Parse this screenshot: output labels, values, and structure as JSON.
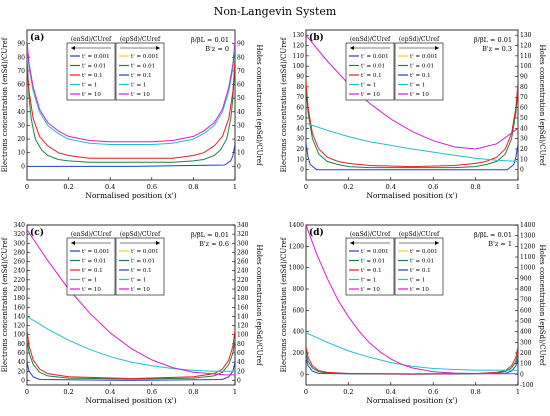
{
  "title": "Non-Langevin System",
  "legend_headers": {
    "electrons": "(enSd)/CUref",
    "holes": "(epSd)/CUref"
  },
  "legend_entries": [
    "t' = 0.001",
    "t' = 0.01",
    "t' = 0.1",
    "t' = 1",
    "t' = 10"
  ],
  "series_colors": [
    "#2040c0",
    "#208040",
    "#e02020",
    "#20c0d0",
    "#d020d0"
  ],
  "hole_series_colors": [
    "#f0d020",
    "#208040",
    "#2040c0",
    "#20c0d0",
    "#d020d0"
  ],
  "chart_data": [
    {
      "id": "a",
      "panel_label": "(a)",
      "type": "line",
      "params": [
        "β/βL = 0.01",
        "B'z = 0"
      ],
      "xlabel": "Normalised position (x')",
      "ylabel": "Electrons concentration (enSd)/CUref",
      "ylabel_right": "Holes concentration (epSd)/CUref",
      "xlim": [
        0,
        1
      ],
      "xticks": [
        0.2,
        0.4,
        0.6,
        0.8,
        1
      ],
      "ylim": [
        -10,
        100
      ],
      "yticks": [
        0,
        10,
        20,
        30,
        40,
        50,
        60,
        70,
        80,
        90
      ],
      "series": [
        {
          "name": "t' = 0.001",
          "x": [
            0,
            0.01,
            0.02,
            0.05,
            0.5,
            0.95,
            0.98,
            0.99,
            1
          ],
          "values": [
            0,
            0,
            0,
            0,
            0,
            1,
            4,
            8,
            16
          ]
        },
        {
          "name": "t' = 0.01",
          "x": [
            0,
            0.01,
            0.02,
            0.04,
            0.07,
            0.1,
            0.15,
            0.2,
            0.3,
            0.5,
            0.7,
            0.8,
            0.85,
            0.9,
            0.93,
            0.96,
            0.98,
            0.99,
            1
          ],
          "values": [
            80,
            50,
            35,
            20,
            12,
            8,
            5,
            4,
            3,
            3,
            3,
            4,
            5,
            8,
            12,
            20,
            35,
            50,
            80
          ]
        },
        {
          "name": "t' = 0.1",
          "x": [
            0,
            0.01,
            0.03,
            0.06,
            0.1,
            0.15,
            0.2,
            0.3,
            0.5,
            0.7,
            0.8,
            0.85,
            0.9,
            0.94,
            0.97,
            0.99,
            1
          ],
          "values": [
            75,
            55,
            35,
            22,
            15,
            10,
            8,
            6,
            6,
            6,
            8,
            10,
            15,
            22,
            35,
            55,
            75
          ]
        },
        {
          "name": "t' = 1",
          "x": [
            0,
            0.01,
            0.03,
            0.06,
            0.1,
            0.15,
            0.2,
            0.3,
            0.4,
            0.5,
            0.6,
            0.7,
            0.8,
            0.85,
            0.9,
            0.94,
            0.97,
            0.99,
            1
          ],
          "values": [
            88,
            72,
            55,
            40,
            30,
            24,
            20,
            17,
            16,
            16,
            16,
            17,
            20,
            24,
            30,
            40,
            55,
            72,
            88
          ]
        },
        {
          "name": "t' = 10",
          "x": [
            0,
            0.01,
            0.03,
            0.06,
            0.1,
            0.15,
            0.2,
            0.3,
            0.4,
            0.5,
            0.6,
            0.7,
            0.8,
            0.85,
            0.9,
            0.94,
            0.97,
            0.99,
            1
          ],
          "values": [
            92,
            75,
            58,
            42,
            32,
            26,
            22,
            19,
            18,
            18,
            18,
            19,
            22,
            26,
            32,
            42,
            58,
            75,
            92
          ]
        }
      ]
    },
    {
      "id": "b",
      "panel_label": "(b)",
      "type": "line",
      "params": [
        "β/βL = 0.01",
        "B'z = 0.3"
      ],
      "xlabel": "Normalised position (x')",
      "ylabel": "Electrons concentration (enSd)/CUref",
      "ylabel_right": "Holes concentration (epSd)/CUref",
      "xlim": [
        0,
        1
      ],
      "xticks": [
        0.2,
        0.4,
        0.6,
        0.8,
        1
      ],
      "ylim": [
        -10,
        135
      ],
      "yticks": [
        0,
        10,
        20,
        30,
        40,
        50,
        60,
        70,
        80,
        90,
        100,
        110,
        120,
        130
      ],
      "series": [
        {
          "name": "t' = 0.001",
          "x": [
            0,
            0.01,
            0.02,
            0.05,
            0.5,
            0.95,
            0.98,
            0.99,
            1
          ],
          "values": [
            25,
            12,
            5,
            0,
            0,
            0,
            5,
            12,
            25
          ]
        },
        {
          "name": "t' = 0.01",
          "x": [
            0,
            0.01,
            0.03,
            0.06,
            0.1,
            0.15,
            0.2,
            0.3,
            0.5,
            0.7,
            0.8,
            0.85,
            0.9,
            0.94,
            0.97,
            0.99,
            1
          ],
          "values": [
            80,
            55,
            30,
            15,
            8,
            5,
            3,
            2,
            2,
            2,
            3,
            5,
            8,
            15,
            30,
            55,
            80
          ]
        },
        {
          "name": "t' = 0.1",
          "x": [
            0,
            0.01,
            0.03,
            0.06,
            0.1,
            0.15,
            0.2,
            0.3,
            0.5,
            0.7,
            0.8,
            0.85,
            0.9,
            0.94,
            0.97,
            0.99,
            1
          ],
          "values": [
            85,
            60,
            35,
            20,
            12,
            8,
            6,
            4,
            3,
            4,
            6,
            8,
            12,
            20,
            35,
            60,
            85
          ]
        },
        {
          "name": "t' = 1",
          "x": [
            0,
            0.1,
            0.2,
            0.3,
            0.5,
            0.7,
            0.8,
            0.9,
            1
          ],
          "values": [
            45,
            38,
            32,
            27,
            20,
            14,
            11,
            9,
            8
          ]
        },
        {
          "name": "t' = 10",
          "x": [
            0,
            0.1,
            0.2,
            0.3,
            0.4,
            0.5,
            0.6,
            0.7,
            0.8,
            0.9,
            1
          ],
          "values": [
            130,
            105,
            83,
            64,
            49,
            37,
            28,
            22,
            20,
            25,
            40
          ]
        }
      ]
    },
    {
      "id": "c",
      "panel_label": "(c)",
      "type": "line",
      "params": [
        "β/βL = 0.01",
        "B'z = 0.6"
      ],
      "xlabel": "Normalised position (x')",
      "ylabel": "Electrons concentration (enSd)/CUref",
      "ylabel_right": "Holes concentration (epSd)/CUref",
      "xlim": [
        0,
        1
      ],
      "xticks": [
        0.2,
        0.4,
        0.6,
        0.8,
        1
      ],
      "ylim": [
        -10,
        340
      ],
      "yticks": [
        0,
        20,
        40,
        60,
        80,
        100,
        120,
        140,
        160,
        180,
        200,
        220,
        240,
        260,
        280,
        300,
        320,
        340
      ],
      "series": [
        {
          "name": "t' = 0.001",
          "x": [
            0,
            0.01,
            0.03,
            0.06,
            0.5,
            0.94,
            0.97,
            0.99,
            1
          ],
          "values": [
            40,
            20,
            8,
            2,
            0,
            2,
            8,
            20,
            40
          ]
        },
        {
          "name": "t' = 0.01",
          "x": [
            0,
            0.01,
            0.03,
            0.06,
            0.1,
            0.2,
            0.5,
            0.8,
            0.9,
            0.94,
            0.97,
            0.99,
            1
          ],
          "values": [
            90,
            60,
            35,
            18,
            10,
            5,
            3,
            5,
            10,
            18,
            35,
            60,
            90
          ]
        },
        {
          "name": "t' = 0.1",
          "x": [
            0,
            0.01,
            0.03,
            0.06,
            0.1,
            0.2,
            0.5,
            0.8,
            0.9,
            0.94,
            0.97,
            0.99,
            1
          ],
          "values": [
            110,
            75,
            45,
            25,
            15,
            8,
            4,
            8,
            15,
            25,
            45,
            75,
            110
          ]
        },
        {
          "name": "t' = 1",
          "x": [
            0,
            0.1,
            0.2,
            0.3,
            0.4,
            0.5,
            0.6,
            0.7,
            0.8,
            0.9,
            1
          ],
          "values": [
            140,
            112,
            88,
            68,
            52,
            40,
            32,
            26,
            22,
            20,
            20
          ]
        },
        {
          "name": "t' = 10",
          "x": [
            0,
            0.1,
            0.2,
            0.3,
            0.4,
            0.5,
            0.6,
            0.7,
            0.8,
            0.9,
            0.95,
            1
          ],
          "values": [
            330,
            262,
            200,
            148,
            104,
            70,
            45,
            28,
            18,
            14,
            12,
            12
          ]
        }
      ]
    },
    {
      "id": "d",
      "panel_label": "(d)",
      "type": "line",
      "params": [
        "β/βL = 0.01",
        "B'z = 1"
      ],
      "xlabel": "Normalised position (x')",
      "ylabel": "Electrons concentration (enSd)/CUref",
      "ylabel_right": "Holes concentration (epSd)/CUref",
      "xlim": [
        0,
        1
      ],
      "xticks": [
        0.2,
        0.4,
        0.6,
        0.8,
        1
      ],
      "ylim": [
        -100,
        1400
      ],
      "yticks": [
        0,
        200,
        400,
        600,
        800,
        1000,
        1200,
        1400
      ],
      "yticks_right": [
        -100,
        0,
        100,
        200,
        300,
        400,
        500,
        600,
        700,
        800,
        900,
        1000,
        1100,
        1200,
        1300,
        1400
      ],
      "series": [
        {
          "name": "t' = 0.001",
          "x": [
            0,
            0.01,
            0.03,
            0.06,
            0.5,
            0.94,
            0.97,
            0.99,
            1
          ],
          "values": [
            150,
            80,
            30,
            8,
            0,
            8,
            30,
            80,
            150
          ]
        },
        {
          "name": "t' = 0.01",
          "x": [
            0,
            0.01,
            0.03,
            0.06,
            0.1,
            0.2,
            0.5,
            0.8,
            0.9,
            0.94,
            0.97,
            0.99,
            1
          ],
          "values": [
            200,
            120,
            60,
            25,
            12,
            6,
            3,
            6,
            12,
            25,
            60,
            120,
            200
          ]
        },
        {
          "name": "t' = 0.1",
          "x": [
            0,
            0.01,
            0.03,
            0.06,
            0.1,
            0.2,
            0.5,
            0.8,
            0.9,
            0.94,
            0.97,
            0.99,
            1
          ],
          "values": [
            260,
            160,
            80,
            35,
            18,
            8,
            4,
            8,
            18,
            35,
            80,
            160,
            260
          ]
        },
        {
          "name": "t' = 1",
          "x": [
            0,
            0.1,
            0.2,
            0.3,
            0.4,
            0.5,
            0.6,
            0.7,
            0.8,
            0.9,
            1
          ],
          "values": [
            390,
            300,
            220,
            160,
            110,
            75,
            55,
            45,
            40,
            38,
            38
          ]
        },
        {
          "name": "t' = 10",
          "x": [
            0,
            0.05,
            0.1,
            0.15,
            0.2,
            0.25,
            0.3,
            0.35,
            0.4,
            0.45,
            0.5,
            0.6,
            0.7,
            0.8,
            0.9,
            1
          ],
          "values": [
            1400,
            1130,
            900,
            700,
            540,
            405,
            295,
            210,
            145,
            95,
            60,
            25,
            12,
            8,
            6,
            6
          ]
        }
      ]
    }
  ]
}
